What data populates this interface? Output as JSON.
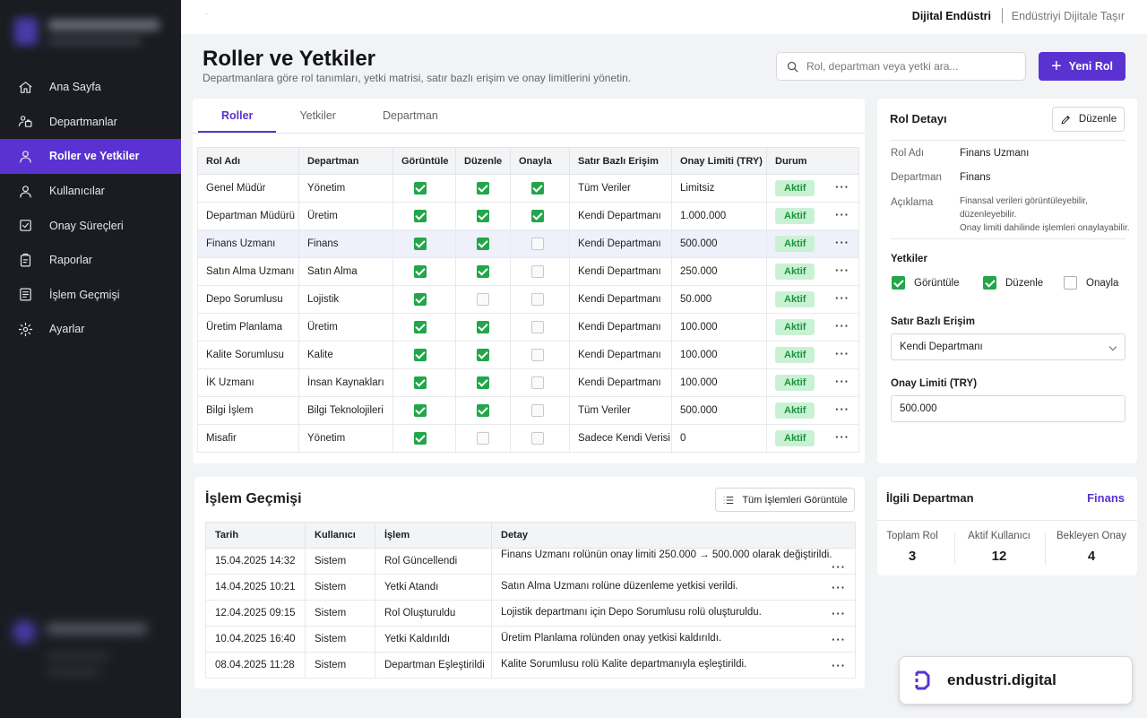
{
  "topbar": {
    "brand": "Dijital Endüstri",
    "slogan": "Endüstriyi Dijitale Taşır"
  },
  "sidebar": {
    "items": [
      {
        "label": "Ana Sayfa",
        "icon": "home-icon",
        "active": false
      },
      {
        "label": "Departmanlar",
        "icon": "departments-icon",
        "active": false
      },
      {
        "label": "Roller ve Yetkiler",
        "icon": "user-icon",
        "active": true
      },
      {
        "label": "Kullanıcılar",
        "icon": "users-icon",
        "active": false
      },
      {
        "label": "Onay Süreçleri",
        "icon": "checkbox-icon",
        "active": false
      },
      {
        "label": "Raporlar",
        "icon": "clipboard-icon",
        "active": false
      },
      {
        "label": "İşlem Geçmişi",
        "icon": "list-icon",
        "active": false
      },
      {
        "label": "Ayarlar",
        "icon": "gear-icon",
        "active": false
      }
    ]
  },
  "header": {
    "title": "Roller ve Yetkiler",
    "subtitle": "Departmanlara göre rol tanımları, yetki matrisi, satır bazlı erişim ve onay limitlerini yönetin.",
    "search_placeholder": "Rol, departman veya yetki ara...",
    "new_role_label": "Yeni Rol"
  },
  "tabs": [
    "Roller",
    "Yetkiler",
    "Departman"
  ],
  "roles_table": {
    "headers": [
      "Rol Adı",
      "Departman",
      "Görüntüle",
      "Düzenle",
      "Onayla",
      "Satır Bazlı Erişim",
      "Onay Limiti (TRY)",
      "Durum"
    ],
    "rows": [
      {
        "role": "Genel Müdür",
        "dept": "Yönetim",
        "view": true,
        "edit": true,
        "approve": true,
        "access": "Tüm Veriler",
        "limit": "Limitsiz",
        "status": "Aktif",
        "selected": false
      },
      {
        "role": "Departman Müdürü",
        "dept": "Üretim",
        "view": true,
        "edit": true,
        "approve": true,
        "access": "Kendi Departmanı",
        "limit": "1.000.000",
        "status": "Aktif",
        "selected": false
      },
      {
        "role": "Finans Uzmanı",
        "dept": "Finans",
        "view": true,
        "edit": true,
        "approve": false,
        "access": "Kendi Departmanı",
        "limit": "500.000",
        "status": "Aktif",
        "selected": true
      },
      {
        "role": "Satın Alma Uzmanı",
        "dept": "Satın Alma",
        "view": true,
        "edit": true,
        "approve": false,
        "access": "Kendi Departmanı",
        "limit": "250.000",
        "status": "Aktif",
        "selected": false
      },
      {
        "role": "Depo Sorumlusu",
        "dept": "Lojistik",
        "view": true,
        "edit": false,
        "approve": false,
        "access": "Kendi Departmanı",
        "limit": "50.000",
        "status": "Aktif",
        "selected": false
      },
      {
        "role": "Üretim Planlama",
        "dept": "Üretim",
        "view": true,
        "edit": true,
        "approve": false,
        "access": "Kendi Departmanı",
        "limit": "100.000",
        "status": "Aktif",
        "selected": false
      },
      {
        "role": "Kalite Sorumlusu",
        "dept": "Kalite",
        "view": true,
        "edit": true,
        "approve": false,
        "access": "Kendi Departmanı",
        "limit": "100.000",
        "status": "Aktif",
        "selected": false
      },
      {
        "role": "İK Uzmanı",
        "dept": "İnsan Kaynakları",
        "view": true,
        "edit": true,
        "approve": false,
        "access": "Kendi Departmanı",
        "limit": "100.000",
        "status": "Aktif",
        "selected": false
      },
      {
        "role": "Bilgi İşlem",
        "dept": "Bilgi Teknolojileri",
        "view": true,
        "edit": true,
        "approve": false,
        "access": "Tüm Veriler",
        "limit": "500.000",
        "status": "Aktif",
        "selected": false
      },
      {
        "role": "Misafir",
        "dept": "Yönetim",
        "view": true,
        "edit": false,
        "approve": false,
        "access": "Sadece Kendi Verisi",
        "limit": "0",
        "status": "Aktif",
        "selected": false
      }
    ]
  },
  "detail": {
    "title": "Rol Detayı",
    "edit_label": "Düzenle",
    "role_label": "Rol Adı",
    "role_value": "Finans Uzmanı",
    "dept_label": "Departman",
    "dept_value": "Finans",
    "desc_label": "Açıklama",
    "desc_line1": "Finansal verileri görüntüleyebilir, düzenleyebilir.",
    "desc_line2": "Onay limiti dahilinde işlemleri onaylayabilir.",
    "perms_title": "Yetkiler",
    "perms": [
      {
        "label": "Görüntüle",
        "checked": true
      },
      {
        "label": "Düzenle",
        "checked": true
      },
      {
        "label": "Onayla",
        "checked": false
      }
    ],
    "access_title": "Satır Bazlı Erişim",
    "access_value": "Kendi Departmanı",
    "limit_title": "Onay Limiti (TRY)",
    "limit_value": "500.000"
  },
  "history": {
    "title": "İşlem Geçmişi",
    "view_all_label": "Tüm İşlemleri Görüntüle",
    "headers": [
      "Tarih",
      "Kullanıcı",
      "İşlem",
      "Detay"
    ],
    "rows": [
      {
        "date": "15.04.2025 14:32",
        "user": "Sistem",
        "action": "Rol Güncellendi",
        "detail": "Finans Uzmanı rolünün onay limiti 250.000 → 500.000 olarak değiştirildi."
      },
      {
        "date": "14.04.2025 10:21",
        "user": "Sistem",
        "action": "Yetki Atandı",
        "detail": "Satın Alma Uzmanı rolüne düzenleme yetkisi verildi."
      },
      {
        "date": "12.04.2025 09:15",
        "user": "Sistem",
        "action": "Rol Oluşturuldu",
        "detail": "Lojistik departmanı için Depo Sorumlusu rolü oluşturuldu."
      },
      {
        "date": "10.04.2025 16:40",
        "user": "Sistem",
        "action": "Yetki Kaldırıldı",
        "detail": "Üretim Planlama rolünden onay yetkisi kaldırıldı."
      },
      {
        "date": "08.04.2025 11:28",
        "user": "Sistem",
        "action": "Departman Eşleştirildi",
        "detail": "Kalite Sorumlusu rolü Kalite departmanıyla eşleştirildi."
      }
    ]
  },
  "dept_card": {
    "title": "İlgili Departman",
    "name": "Finans",
    "stats": [
      {
        "label": "Toplam Rol",
        "value": "3"
      },
      {
        "label": "Aktif Kullanıcı",
        "value": "12"
      },
      {
        "label": "Bekleyen Onay",
        "value": "4"
      }
    ]
  },
  "watermark": {
    "text": "endustri.digital"
  },
  "colors": {
    "accent": "#5a32d1",
    "sidebar_bg": "#1b1c22",
    "check_green": "#22a64a",
    "badge_bg": "#c9f2d4",
    "badge_text": "#19963c"
  }
}
